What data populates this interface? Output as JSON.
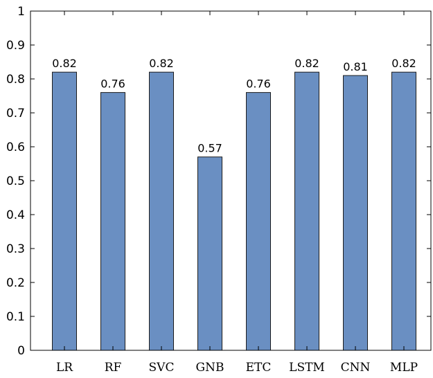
{
  "chart_data": {
    "type": "bar",
    "categories": [
      "LR",
      "RF",
      "SVC",
      "GNB",
      "ETC",
      "LSTM",
      "CNN",
      "MLP"
    ],
    "values": [
      0.82,
      0.76,
      0.82,
      0.57,
      0.76,
      0.82,
      0.81,
      0.82
    ],
    "data_labels": [
      "0.82",
      "0.76",
      "0.82",
      "0.57",
      "0.76",
      "0.82",
      "0.81",
      "0.82"
    ],
    "yticks": [
      0,
      0.1,
      0.2,
      0.3,
      0.4,
      0.5,
      0.6,
      0.7,
      0.8,
      0.9,
      1
    ],
    "ytick_labels": [
      "0",
      "0.1",
      "0.2",
      "0.3",
      "0.4",
      "0.5",
      "0.6",
      "0.7",
      "0.8",
      "0.9",
      "1"
    ],
    "ylim": [
      0,
      1
    ],
    "title": "",
    "xlabel": "",
    "ylabel": "",
    "grid": false,
    "bar_color": "#6a8fc2",
    "bar_edge_color": "#1c1c1c"
  }
}
